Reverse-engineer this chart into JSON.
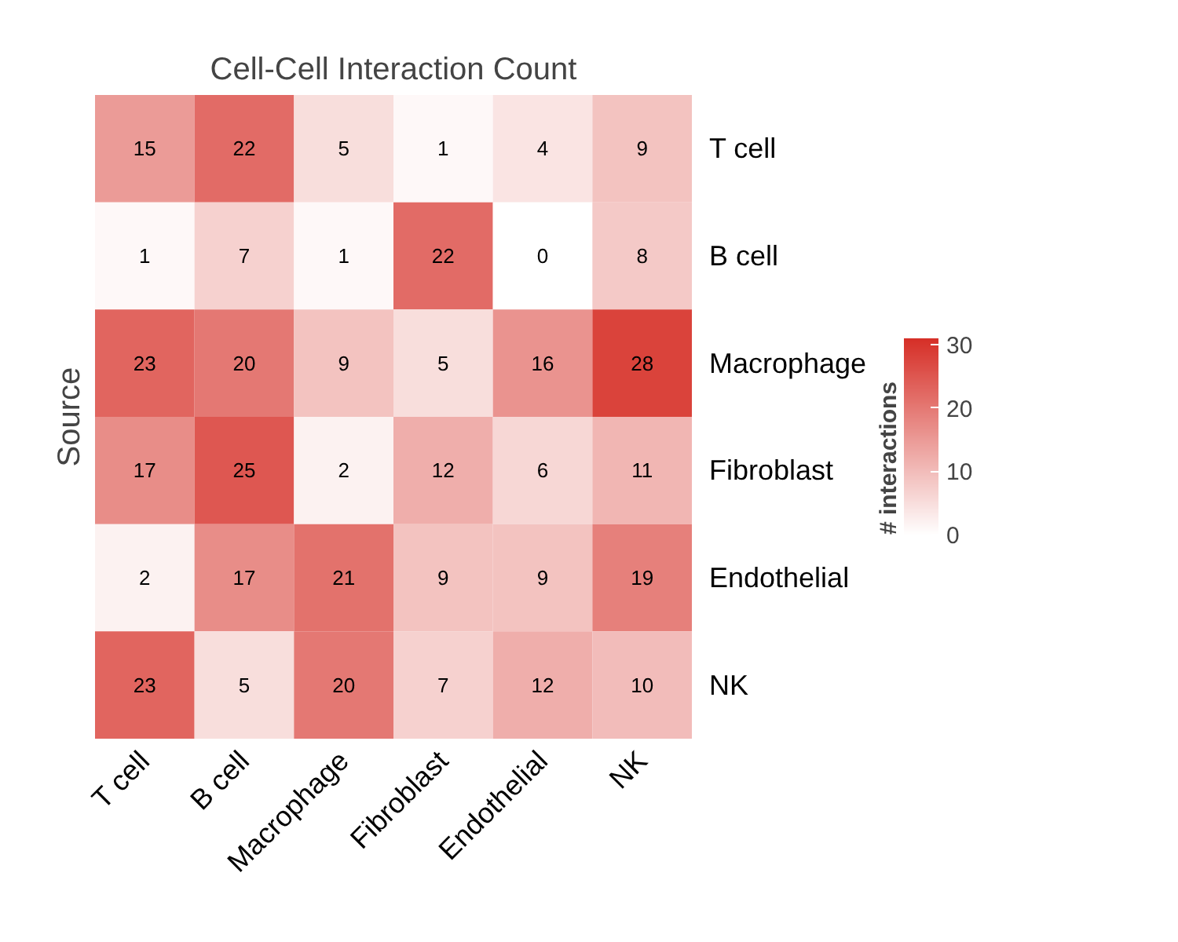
{
  "chart_data": {
    "type": "heatmap",
    "title": "Cell-Cell Interaction Count",
    "ylabel": "Source",
    "legend_title": "# interactions",
    "categories": [
      "T cell",
      "B cell",
      "Macrophage",
      "Fibroblast",
      "Endothelial",
      "NK"
    ],
    "y_categories": [
      "T cell",
      "B cell",
      "Macrophage",
      "Fibroblast",
      "Endothelial",
      "NK"
    ],
    "cells": [
      [
        15,
        22,
        5,
        1,
        4,
        9
      ],
      [
        1,
        7,
        1,
        22,
        0,
        8
      ],
      [
        23,
        20,
        9,
        5,
        16,
        28
      ],
      [
        17,
        25,
        2,
        12,
        6,
        11
      ],
      [
        2,
        17,
        21,
        9,
        9,
        19
      ],
      [
        23,
        5,
        20,
        7,
        12,
        10
      ]
    ],
    "clim": [
      0,
      31
    ],
    "cticks": [
      0,
      10,
      20,
      30
    ],
    "data_labels": true,
    "grid": false
  }
}
